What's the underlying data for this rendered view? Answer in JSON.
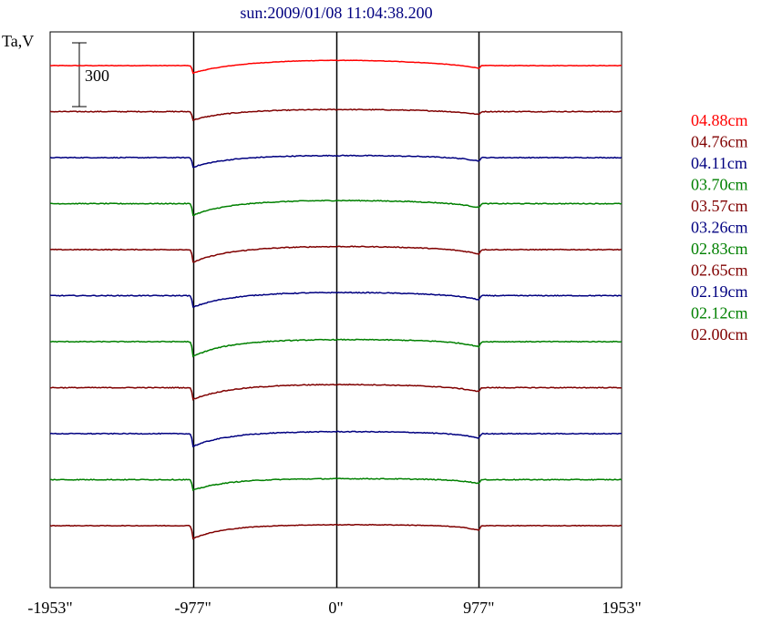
{
  "chart_data": {
    "type": "line",
    "title": "sun:2009/01/08 11:04:38.200",
    "ylabel": "Ta,V",
    "scale_bar_label": "300",
    "scale_bar_value": 300,
    "xlim": [
      -1953,
      1953
    ],
    "x_ticks": [
      {
        "value": -1953,
        "label": "-1953\""
      },
      {
        "value": -977,
        "label": "-977\""
      },
      {
        "value": 0,
        "label": "0\""
      },
      {
        "value": 977,
        "label": "977\""
      },
      {
        "value": 1953,
        "label": "1953\""
      }
    ],
    "vertical_markers": [
      -977,
      0,
      977
    ],
    "grid": false,
    "legend_position": "right",
    "series": [
      {
        "name": "04.88cm",
        "color": "#ff0000",
        "baseline": 0,
        "depth": 35,
        "center_height": 25,
        "noise": 2
      },
      {
        "name": "04.76cm",
        "color": "#800000",
        "baseline": -1,
        "depth": 40,
        "center_height": 10,
        "noise": 4
      },
      {
        "name": "04.11cm",
        "color": "#000080",
        "baseline": -2,
        "depth": 45,
        "center_height": 10,
        "noise": 4
      },
      {
        "name": "03.70cm",
        "color": "#008000",
        "baseline": -3,
        "depth": 55,
        "center_height": 15,
        "noise": 4
      },
      {
        "name": "03.57cm",
        "color": "#800000",
        "baseline": -4,
        "depth": 60,
        "center_height": 15,
        "noise": 4
      },
      {
        "name": "03.26cm",
        "color": "#000080",
        "baseline": -5,
        "depth": 55,
        "center_height": 15,
        "noise": 4
      },
      {
        "name": "02.83cm",
        "color": "#008000",
        "baseline": -6,
        "depth": 70,
        "center_height": 10,
        "noise": 4
      },
      {
        "name": "02.65cm",
        "color": "#800000",
        "baseline": -7,
        "depth": 55,
        "center_height": 15,
        "noise": 4
      },
      {
        "name": "02.19cm",
        "color": "#000080",
        "baseline": -8,
        "depth": 60,
        "center_height": 10,
        "noise": 4
      },
      {
        "name": "02.12cm",
        "color": "#008000",
        "baseline": -9,
        "depth": 50,
        "center_height": 5,
        "noise": 4
      },
      {
        "name": "02.00cm",
        "color": "#800000",
        "baseline": -10,
        "depth": 60,
        "center_height": 5,
        "noise": 3
      }
    ]
  }
}
